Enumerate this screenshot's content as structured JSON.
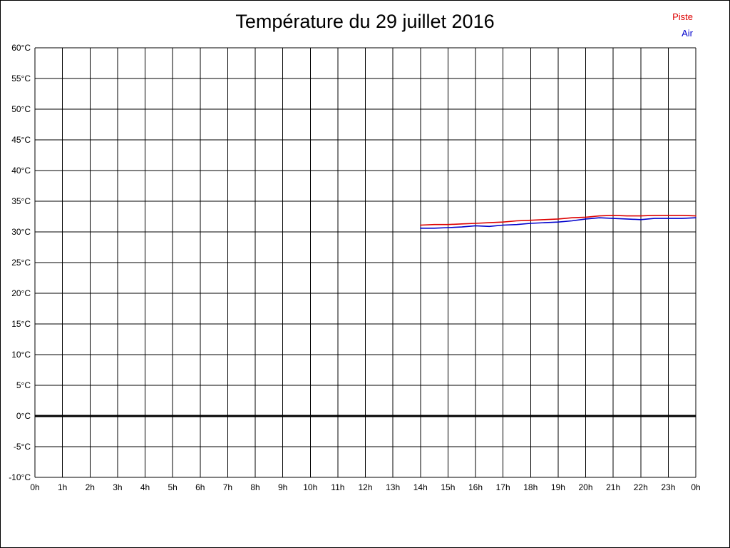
{
  "chart_data": {
    "type": "line",
    "title": "Température du 29 juillet 2016",
    "xlabel": "",
    "ylabel": "",
    "xlim": [
      0,
      24
    ],
    "ylim": [
      -10,
      60
    ],
    "grid": true,
    "x_tick_values": [
      0,
      1,
      2,
      3,
      4,
      5,
      6,
      7,
      8,
      9,
      10,
      11,
      12,
      13,
      14,
      15,
      16,
      17,
      18,
      19,
      20,
      21,
      22,
      23,
      24
    ],
    "x_tick_labels": [
      "0h",
      "1h",
      "2h",
      "3h",
      "4h",
      "5h",
      "6h",
      "7h",
      "8h",
      "9h",
      "10h",
      "11h",
      "12h",
      "13h",
      "14h",
      "15h",
      "16h",
      "17h",
      "18h",
      "19h",
      "20h",
      "21h",
      "22h",
      "23h",
      "0h"
    ],
    "y_tick_values": [
      60,
      55,
      50,
      45,
      40,
      35,
      30,
      25,
      20,
      15,
      10,
      5,
      0,
      -5,
      -10
    ],
    "y_tick_labels": [
      "60°C",
      "55°C",
      "50°C",
      "45°C",
      "40°C",
      "35°C",
      "30°C",
      "25°C",
      "20°C",
      "15°C",
      "10°C",
      "5°C",
      "0°C",
      "-5°C",
      "-10°C"
    ],
    "zero_line": {
      "value": 0
    },
    "legend": {
      "position": "top-right",
      "entries": [
        {
          "label": "Piste",
          "color": "#dd0000"
        },
        {
          "label": "Air",
          "color": "#0000cc"
        }
      ]
    },
    "series": [
      {
        "name": "Piste",
        "color": "#dd0000",
        "x": [
          14,
          14.5,
          15,
          15.5,
          16,
          16.5,
          17,
          17.5,
          18,
          18.5,
          19,
          19.5,
          20,
          20.5,
          21,
          21.5,
          22,
          22.5,
          23,
          23.5,
          24
        ],
        "y": [
          31.1,
          31.2,
          31.2,
          31.3,
          31.4,
          31.5,
          31.6,
          31.8,
          31.9,
          32.0,
          32.1,
          32.3,
          32.4,
          32.6,
          32.7,
          32.6,
          32.6,
          32.7,
          32.7,
          32.7,
          32.6
        ]
      },
      {
        "name": "Air",
        "color": "#0000cc",
        "x": [
          14,
          14.5,
          15,
          15.5,
          16,
          16.5,
          17,
          17.5,
          18,
          18.5,
          19,
          19.5,
          20,
          20.5,
          21,
          21.5,
          22,
          22.5,
          23,
          23.5,
          24
        ],
        "y": [
          30.6,
          30.6,
          30.7,
          30.8,
          31.0,
          30.9,
          31.1,
          31.2,
          31.4,
          31.5,
          31.6,
          31.8,
          32.1,
          32.3,
          32.2,
          32.1,
          32.0,
          32.2,
          32.2,
          32.2,
          32.3
        ]
      }
    ]
  }
}
